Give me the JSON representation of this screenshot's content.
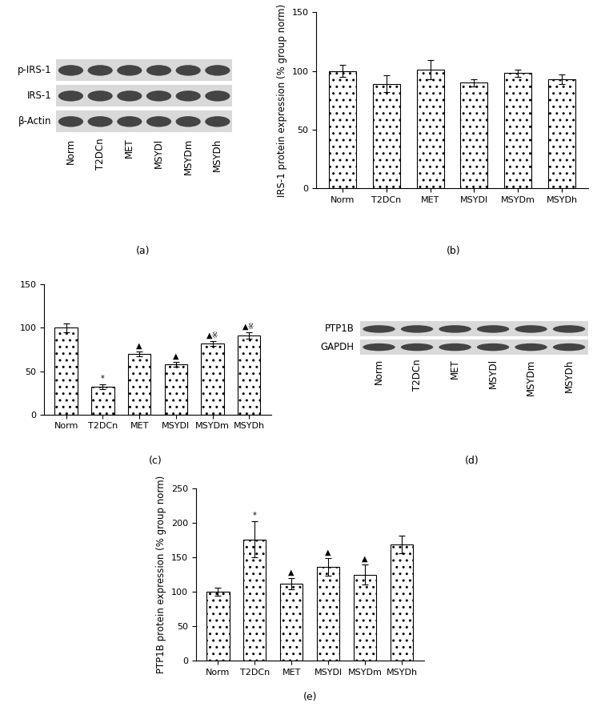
{
  "chart_data": [
    {
      "type": "bar",
      "annotations": [
        "(b)"
      ],
      "categories": [
        "Norm",
        "T2DCn",
        "MET",
        "MSYDl",
        "MSYDm",
        "MSYDh"
      ],
      "values": [
        100,
        89,
        101,
        90,
        98,
        93
      ],
      "errors": [
        5,
        7,
        8,
        3,
        3,
        4
      ],
      "y_label": "IRS-1 protein expression (% group norm)",
      "color": "#ffffff",
      "ylim": [
        0,
        150
      ],
      "yticks": [
        0,
        50,
        100,
        150
      ]
    },
    {
      "type": "bar",
      "annotations": [
        "(c)"
      ],
      "categories": [
        "Norm",
        "T2DCn",
        "MET",
        "MSYDl",
        "MSYDm",
        "MSYDh"
      ],
      "values": [
        100,
        32,
        70,
        58,
        82,
        91
      ],
      "errors": [
        5,
        3,
        3,
        3,
        3,
        4
      ],
      "significance": [
        null,
        "*",
        "▲",
        "▲",
        "▲※",
        "▲※"
      ],
      "color": "#ffffff",
      "ylim": [
        0,
        150
      ],
      "yticks": [
        0,
        50,
        100,
        150
      ]
    },
    {
      "type": "bar",
      "annotations": [
        "(e)"
      ],
      "categories": [
        "Norm",
        "T2DCn",
        "MET",
        "MSYDl",
        "MSYDm",
        "MSYDh"
      ],
      "values": [
        100,
        176,
        112,
        136,
        125,
        169
      ],
      "errors": [
        6,
        26,
        8,
        13,
        15,
        13
      ],
      "significance": [
        null,
        "*",
        "▲",
        "▲",
        "▲",
        null
      ],
      "y_label": "PTP1B protein expression (% group norm)",
      "color": "#ffffff",
      "ylim": [
        0,
        250
      ],
      "yticks": [
        0,
        50,
        100,
        150,
        200,
        250
      ]
    }
  ],
  "blots": [
    {
      "panel": "(a)",
      "rows": [
        "p-IRS-1",
        "IRS-1",
        "β-Actin"
      ],
      "lanes": [
        "Norm",
        "T2DCn",
        "MET",
        "MSYDl",
        "MSYDm",
        "MSYDh"
      ]
    },
    {
      "panel": "(d)",
      "rows": [
        "PTP1B",
        "GAPDH"
      ],
      "lanes": [
        "Norm",
        "T2DCn",
        "MET",
        "MSYDl",
        "MSYDm",
        "MSYDh"
      ]
    }
  ]
}
